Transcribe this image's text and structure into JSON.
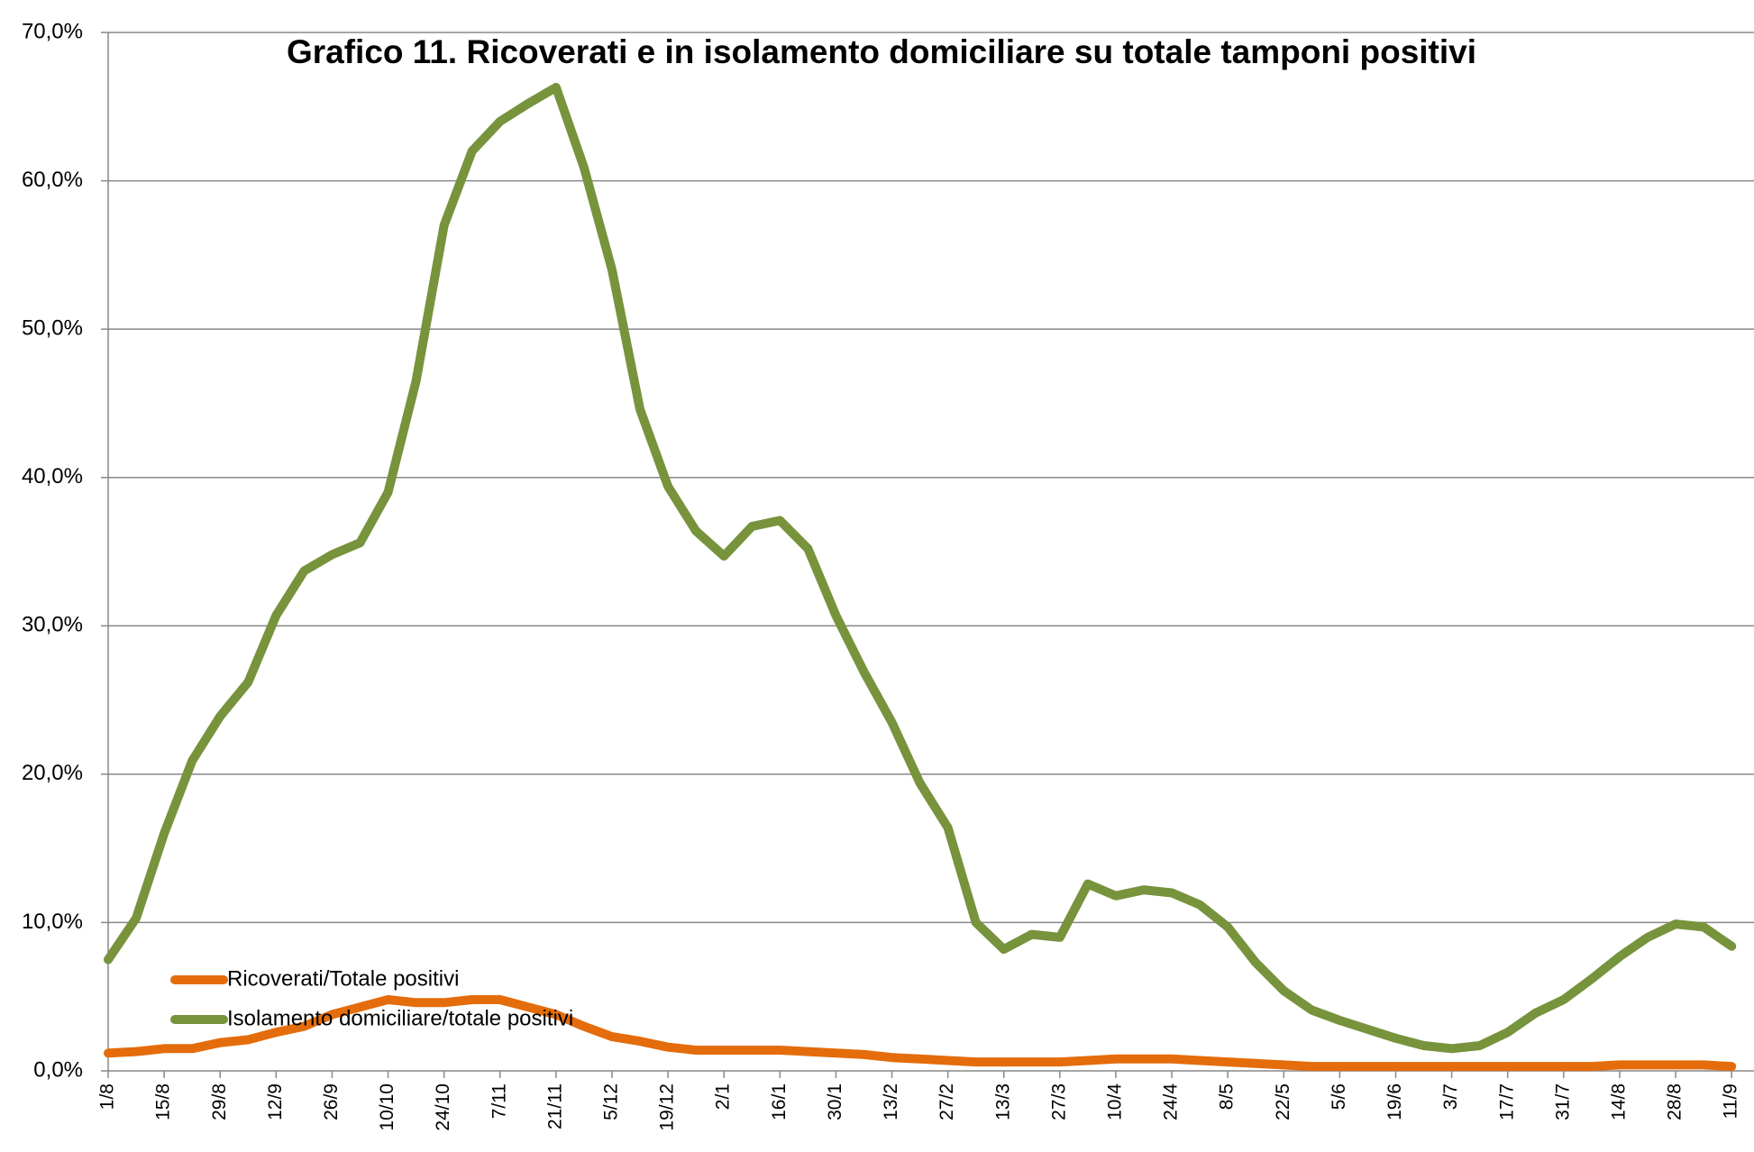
{
  "chart_data": {
    "type": "line",
    "title": "Grafico 11. Ricoverati e in isolamento domiciliare su totale tamponi positivi",
    "categories": [
      "1/8",
      null,
      "15/8",
      null,
      "29/8",
      null,
      "12/9",
      null,
      "26/9",
      null,
      "10/10",
      null,
      "24/10",
      null,
      "7/11",
      null,
      "21/11",
      null,
      "5/12",
      null,
      "19/12",
      null,
      "2/1",
      null,
      "16/1",
      null,
      "30/1",
      null,
      "13/2",
      null,
      "27/2",
      null,
      "13/3",
      null,
      "27/3",
      null,
      "10/4",
      null,
      "24/4",
      null,
      "8/5",
      null,
      "22/5",
      null,
      "5/6",
      null,
      "19/6",
      null,
      "3/7",
      null,
      "17/7",
      null,
      "31/7",
      null,
      "14/8",
      null,
      "28/8",
      null,
      "11/9"
    ],
    "series": [
      {
        "name": "Ricoverati/Totale positivi",
        "color": "#e46c0a",
        "values": [
          1.2,
          1.3,
          1.5,
          1.5,
          1.9,
          2.1,
          2.6,
          3.0,
          3.8,
          4.3,
          4.8,
          4.6,
          4.6,
          4.8,
          4.8,
          4.3,
          3.8,
          3.0,
          2.3,
          2.0,
          1.6,
          1.4,
          1.4,
          1.4,
          1.4,
          1.3,
          1.2,
          1.1,
          0.9,
          0.8,
          0.7,
          0.6,
          0.6,
          0.6,
          0.6,
          0.7,
          0.8,
          0.8,
          0.8,
          0.7,
          0.6,
          0.5,
          0.4,
          0.3,
          0.3,
          0.3,
          0.3,
          0.3,
          0.3,
          0.3,
          0.3,
          0.3,
          0.3,
          0.3,
          0.4,
          0.4,
          0.4,
          0.4,
          0.3
        ]
      },
      {
        "name": "Isolamento domiciliare/totale positivi",
        "color": "#77933c",
        "values": [
          7.5,
          10.3,
          16,
          20.9,
          23.9,
          26.2,
          30.7,
          33.7,
          34.8,
          35.6,
          39,
          46.5,
          57,
          62,
          64,
          65.2,
          66.3,
          60.9,
          54,
          44.6,
          39.4,
          36.4,
          34.7,
          36.7,
          37.1,
          35.2,
          30.7,
          26.9,
          23.5,
          19.4,
          16.4,
          10,
          8.2,
          9.2,
          9,
          12.6,
          11.8,
          12.2,
          12,
          11.2,
          9.7,
          7.3,
          5.4,
          4.1,
          3.4,
          2.8,
          2.2,
          1.7,
          1.5,
          1.7,
          2.6,
          3.9,
          4.8,
          6.2,
          7.7,
          9.0,
          9.9,
          9.7,
          8.4
        ]
      }
    ],
    "ylim": [
      0,
      70
    ],
    "yticks": [
      {
        "value": 0,
        "label": "0,0%"
      },
      {
        "value": 10,
        "label": "10,0%"
      },
      {
        "value": 20,
        "label": "20,0%"
      },
      {
        "value": 30,
        "label": "30,0%"
      },
      {
        "value": 40,
        "label": "40,0%"
      },
      {
        "value": 50,
        "label": "50,0%"
      },
      {
        "value": 60,
        "label": "60,0%"
      },
      {
        "value": 70,
        "label": "70,0%"
      }
    ],
    "grid": true,
    "legend": "lower left"
  }
}
